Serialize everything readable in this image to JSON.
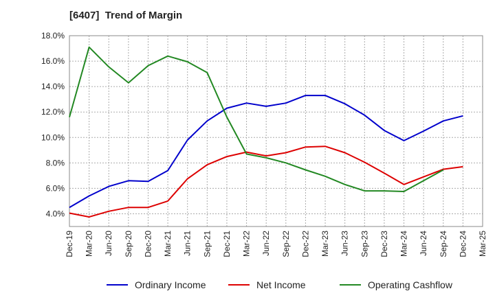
{
  "chart_data": {
    "type": "line",
    "title": "[6407]  Trend of Margin",
    "xlabel": "",
    "ylabel": "",
    "categories": [
      "Dec-19",
      "Mar-20",
      "Jun-20",
      "Sep-20",
      "Dec-20",
      "Mar-21",
      "Jun-21",
      "Sep-21",
      "Dec-21",
      "Mar-22",
      "Jun-22",
      "Sep-22",
      "Dec-22",
      "Mar-23",
      "Jun-23",
      "Sep-23",
      "Dec-23",
      "Mar-24",
      "Jun-24",
      "Sep-24",
      "Dec-24",
      "Mar-25"
    ],
    "ylim": [
      3.0,
      18.0
    ],
    "yticks": [
      4.0,
      6.0,
      8.0,
      10.0,
      12.0,
      14.0,
      16.0,
      18.0
    ],
    "ytick_labels": [
      "4.0%",
      "6.0%",
      "8.0%",
      "10.0%",
      "12.0%",
      "14.0%",
      "16.0%",
      "18.0%"
    ],
    "grid": true,
    "legend_position": "bottom",
    "series": [
      {
        "name": "Ordinary Income",
        "color": "#0000cc",
        "values": [
          4.5,
          5.4,
          6.15,
          6.6,
          6.55,
          7.4,
          9.8,
          11.3,
          12.3,
          12.7,
          12.45,
          12.7,
          13.3,
          13.3,
          12.65,
          11.75,
          10.55,
          9.75,
          10.5,
          11.3,
          11.7,
          null
        ]
      },
      {
        "name": "Net Income",
        "color": "#dd0000",
        "values": [
          4.05,
          3.75,
          4.2,
          4.5,
          4.5,
          5.0,
          6.75,
          7.85,
          8.5,
          8.85,
          8.55,
          8.8,
          9.25,
          9.3,
          8.8,
          8.05,
          7.2,
          6.3,
          6.9,
          7.5,
          7.7,
          null
        ]
      },
      {
        "name": "Operating Cashflow",
        "color": "#228822",
        "values": [
          11.6,
          17.1,
          15.55,
          14.3,
          15.65,
          16.4,
          15.95,
          15.1,
          11.6,
          8.7,
          8.4,
          8.0,
          7.45,
          6.95,
          6.3,
          5.8,
          5.8,
          5.75,
          6.6,
          7.45,
          null,
          null
        ]
      }
    ]
  }
}
